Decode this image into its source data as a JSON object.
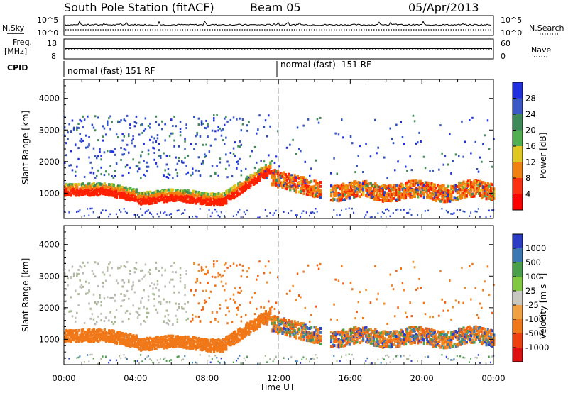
{
  "header": {
    "station": "South Pole Station (fitACF)",
    "beam": "Beam 05",
    "date": "05/Apr/2013"
  },
  "top_panels": {
    "nsky_label": "N.Sky",
    "nsearch_label": "N.Search",
    "freq_label_1": "Freq.",
    "freq_label_2": "[MHz]",
    "nave_label": "Nave",
    "cpid_label": "CPID",
    "noise_left_ticks": [
      "10^5",
      "10^0"
    ],
    "noise_right_ticks": [
      "10^5",
      "10^0"
    ],
    "freq_left_ticks": [
      "18",
      "8"
    ],
    "nave_right_ticks": [
      "60",
      "0"
    ],
    "cpid_segments": [
      "normal (fast) 151 RF",
      "normal (fast) -151 RF"
    ]
  },
  "chart_data": [
    {
      "type": "heatmap",
      "title": "",
      "parameter": "Power",
      "xlabel": "",
      "ylabel": "Slant Range [km]",
      "x_ticks": [
        "00:00",
        "04:00",
        "08:00",
        "12:00",
        "16:00",
        "20:00",
        "00:00"
      ],
      "y_ticks": [
        1000,
        2000,
        3000,
        4000
      ],
      "ylim": [
        200,
        4600
      ],
      "colorbar": {
        "label": "Power [dB]",
        "ticks": [
          "28",
          "24",
          "20",
          "16",
          "12",
          "8",
          "4"
        ],
        "colors": [
          "#2030e0",
          "#3a58c8",
          "#3e8a58",
          "#50b050",
          "#e0c820",
          "#f08010",
          "#ff3010",
          "#ff0000"
        ]
      },
      "scatter_bands": [
        {
          "range_km": [
            800,
            1300
          ],
          "time_h": [
            0,
            11.5
          ],
          "level": "high"
        },
        {
          "range_km": [
            1000,
            1800
          ],
          "time_h": [
            11,
            14.5
          ],
          "level": "medium"
        },
        {
          "range_km": [
            800,
            1500
          ],
          "time_h": [
            14.8,
            24
          ],
          "level": "medium"
        },
        {
          "range_km": [
            1500,
            3500
          ],
          "time_h": [
            0,
            10
          ],
          "level": "low"
        }
      ]
    },
    {
      "type": "heatmap",
      "title": "",
      "parameter": "Velocity",
      "xlabel": "Time UT",
      "ylabel": "Slant Range [km]",
      "x_ticks": [
        "00:00",
        "04:00",
        "08:00",
        "12:00",
        "16:00",
        "20:00",
        "00:00"
      ],
      "y_ticks": [
        1000,
        2000,
        3000,
        4000
      ],
      "ylim": [
        200,
        4600
      ],
      "colorbar": {
        "label": "Velocity [m s⁻¹]",
        "ticks": [
          "1000",
          "500",
          "100",
          "25",
          "-25",
          "-100",
          "-500",
          "-1000"
        ],
        "colors": [
          "#2a3cc8",
          "#3c78b4",
          "#4aa04a",
          "#80c840",
          "#c8c8c0",
          "#f0a040",
          "#f07818",
          "#f04010",
          "#e01010"
        ]
      }
    }
  ],
  "colors": {
    "power_high": "#ff2000",
    "power_mid": "#f08010",
    "power_low": "#2a4cc0",
    "vel_neg": "#f07818",
    "vel_ground": "#c0c0b8"
  }
}
